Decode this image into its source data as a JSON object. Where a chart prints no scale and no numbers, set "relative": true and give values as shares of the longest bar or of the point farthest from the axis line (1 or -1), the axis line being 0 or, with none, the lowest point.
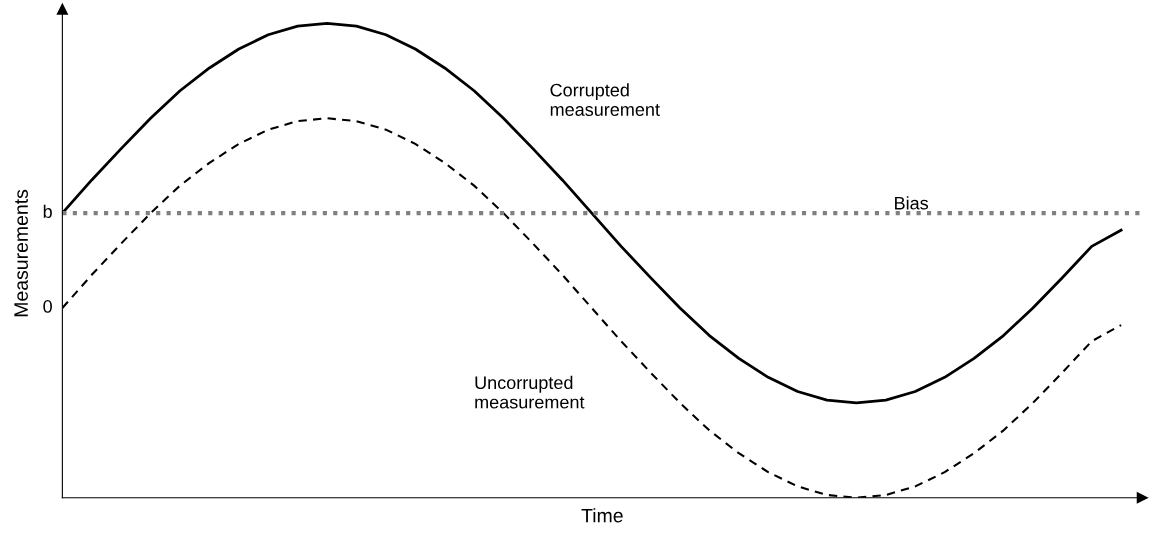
{
  "chart_data": {
    "type": "line",
    "xlabel": "Time",
    "ylabel": "Measurements",
    "relative": true,
    "categories": [
      null,
      null,
      null,
      null,
      null,
      null,
      null,
      null,
      null,
      null,
      null,
      null,
      null,
      null,
      null,
      null,
      null,
      null,
      null,
      null,
      null,
      null,
      null,
      null,
      null,
      null,
      null,
      null,
      null,
      null,
      null,
      null,
      null,
      null,
      null,
      null,
      null
    ],
    "series": [
      {
        "name": "Corrupted measurement",
        "color": "#000000",
        "line_style": "solid",
        "values": [
          0.6,
          0.67,
          0.736,
          0.8,
          0.858,
          0.906,
          0.946,
          0.976,
          0.994,
          1,
          0.994,
          0.976,
          0.946,
          0.906,
          0.858,
          0.8,
          0.736,
          0.67,
          0.6,
          0.53,
          0.464,
          0.4,
          0.342,
          0.294,
          0.254,
          0.224,
          0.206,
          0.2,
          0.206,
          0.224,
          0.254,
          0.294,
          0.342,
          0.4,
          0.464,
          0.53,
          0.564
        ]
      },
      {
        "name": "Uncorrupted measurement",
        "color": "#000000",
        "line_style": "dashed",
        "values": [
          0.4,
          0.47,
          0.536,
          0.6,
          0.658,
          0.706,
          0.746,
          0.776,
          0.794,
          0.8,
          0.794,
          0.776,
          0.746,
          0.706,
          0.658,
          0.6,
          0.536,
          0.47,
          0.4,
          0.33,
          0.264,
          0.2,
          0.142,
          0.094,
          0.054,
          0.024,
          0.006,
          0,
          0.006,
          0.024,
          0.054,
          0.094,
          0.142,
          0.2,
          0.264,
          0.33,
          0.364
        ]
      }
    ],
    "annotations": [
      "0",
      "b"
    ],
    "ref_lines": [
      {
        "axis": "y",
        "value": 0.6,
        "label": "Bias",
        "color": "#808080",
        "line_style": "dotted"
      }
    ],
    "grid": false,
    "legend": false
  }
}
